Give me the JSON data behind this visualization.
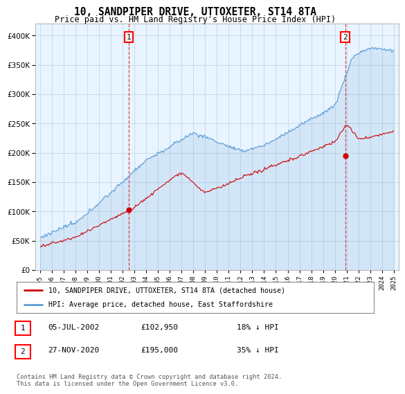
{
  "title": "10, SANDPIPER DRIVE, UTTOXETER, ST14 8TA",
  "subtitle": "Price paid vs. HM Land Registry's House Price Index (HPI)",
  "legend_line1": "10, SANDPIPER DRIVE, UTTOXETER, ST14 8TA (detached house)",
  "legend_line2": "HPI: Average price, detached house, East Staffordshire",
  "transaction1_date": "05-JUL-2002",
  "transaction1_price": 102950,
  "transaction1_label": "18% ↓ HPI",
  "transaction2_date": "27-NOV-2020",
  "transaction2_price": 195000,
  "transaction2_label": "35% ↓ HPI",
  "footer": "Contains HM Land Registry data © Crown copyright and database right 2024.\nThis data is licensed under the Open Government Licence v3.0.",
  "hpi_color": "#5b9bd5",
  "hpi_fill": "#ddeeff",
  "price_color": "#cc0000",
  "marker_color": "#cc0000",
  "vline_color": "#cc0000",
  "ylim": [
    0,
    420000
  ],
  "background_color": "#ffffff",
  "plot_bg_color": "#e8f4ff"
}
